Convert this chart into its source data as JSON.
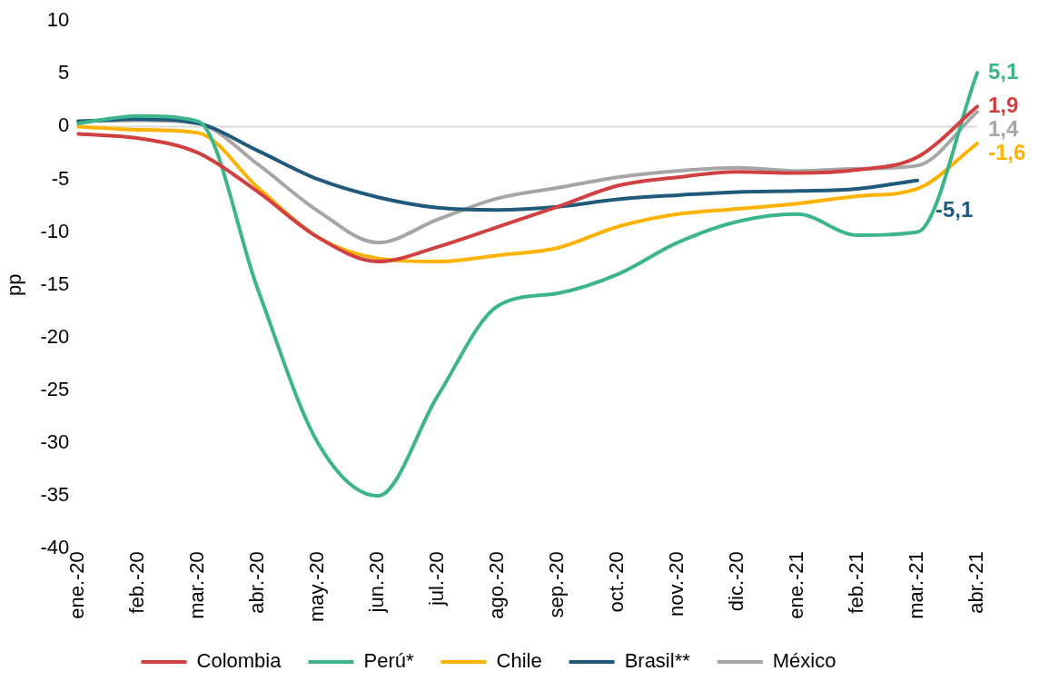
{
  "chart_data": {
    "type": "line",
    "ylabel": "pp",
    "categories": [
      "ene.-20",
      "feb.-20",
      "mar.-20",
      "abr.-20",
      "may.-20",
      "jun.-20",
      "jul.-20",
      "ago.-20",
      "sep.-20",
      "oct.-20",
      "nov.-20",
      "dic.-20",
      "ene.-21",
      "feb.-21",
      "mar.-21",
      "abr.-21"
    ],
    "series": [
      {
        "name": "Colombia",
        "color": "#d04040",
        "values": [
          -0.7,
          -1.1,
          -2.5,
          -6.2,
          -10.5,
          -12.8,
          -11.4,
          -9.5,
          -7.6,
          -5.6,
          -4.8,
          -4.3,
          -4.4,
          -4.1,
          -2.9,
          1.9
        ],
        "value_labels": [
          null,
          null,
          null,
          null,
          null,
          null,
          null,
          null,
          null,
          null,
          null,
          null,
          null,
          null,
          null,
          "1,9"
        ]
      },
      {
        "name": "Perú*",
        "color": "#3cb58a",
        "values": [
          0.3,
          1.0,
          0.5,
          -15.5,
          -30,
          -35,
          -25.5,
          -17,
          -15.8,
          -14,
          -11,
          -9,
          -8.3,
          -10.3,
          -10,
          5.1
        ],
        "value_labels": [
          null,
          null,
          null,
          null,
          null,
          null,
          null,
          null,
          null,
          null,
          null,
          null,
          null,
          null,
          null,
          "5,1"
        ]
      },
      {
        "name": "Chile",
        "color": "#ffb300",
        "values": [
          0,
          -0.3,
          -0.6,
          -5.8,
          -10.5,
          -12.5,
          -12.8,
          -12.2,
          -11.5,
          -9.5,
          -8.3,
          -7.8,
          -7.3,
          -6.6,
          -5.9,
          -1.6
        ],
        "value_labels": [
          null,
          null,
          null,
          null,
          null,
          null,
          null,
          null,
          null,
          null,
          null,
          null,
          null,
          null,
          null,
          "-1,6"
        ]
      },
      {
        "name": "Brasil**",
        "color": "#1f5a7a",
        "values": [
          0.5,
          0.7,
          0.3,
          -2.3,
          -5,
          -6.7,
          -7.7,
          -7.9,
          -7.6,
          -6.9,
          -6.5,
          -6.2,
          -6.1,
          -5.9,
          -5.1,
          null
        ],
        "value_labels": [
          null,
          null,
          null,
          null,
          null,
          null,
          null,
          null,
          null,
          null,
          null,
          null,
          null,
          null,
          "-5,1",
          null
        ]
      },
      {
        "name": "México",
        "color": "#a6a6a6",
        "values": [
          0.5,
          0.6,
          0.3,
          -3.6,
          -8,
          -11,
          -8.8,
          -6.8,
          -5.8,
          -4.8,
          -4.2,
          -3.9,
          -4.2,
          -4.0,
          -3.7,
          1.4
        ],
        "value_labels": [
          null,
          null,
          null,
          null,
          null,
          null,
          null,
          null,
          null,
          null,
          null,
          null,
          null,
          null,
          null,
          "1,4"
        ]
      }
    ],
    "ylim": [
      -40,
      10
    ],
    "yticks": [
      -40,
      -35,
      -30,
      -25,
      -20,
      -15,
      -10,
      -5,
      0,
      5,
      10
    ],
    "ref_lines": [
      {
        "axis": "y",
        "value": 0,
        "color": "#d9d9d9"
      }
    ],
    "grid": false,
    "legend": "bottom",
    "marker": "none",
    "line_style": "solid"
  }
}
